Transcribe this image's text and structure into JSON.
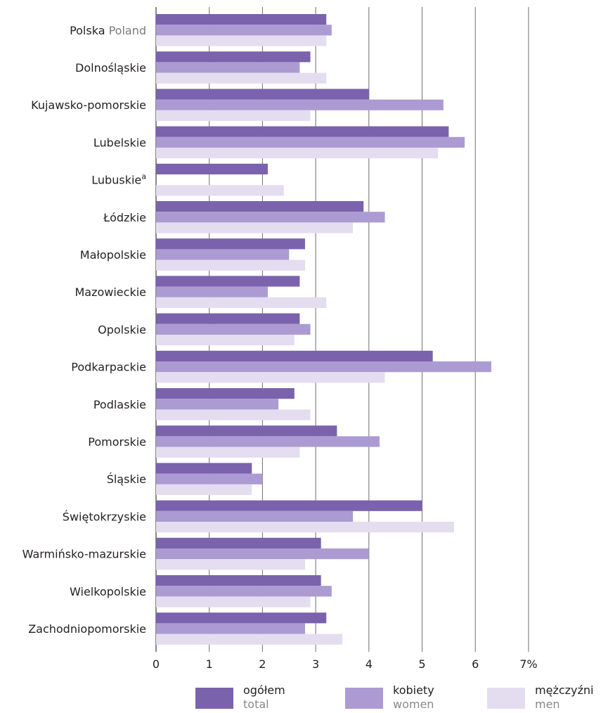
{
  "chart_data": {
    "type": "bar",
    "orientation": "horizontal",
    "categories": [
      "Polska",
      "Dolnośląskie",
      "Kujawsko-pomorskie",
      "Lubelskie",
      "Lubuskie",
      "Łódzkie",
      "Małopolskie",
      "Mazowieckie",
      "Opolskie",
      "Podkarpackie",
      "Podlaskie",
      "Pomorskie",
      "Śląskie",
      "Świętokrzyskie",
      "Warmińsko-mazurskie",
      "Wielkopolskie",
      "Zachodniopomorskie"
    ],
    "category_sublabels": [
      "Poland",
      "",
      "",
      "",
      "",
      "",
      "",
      "",
      "",
      "",
      "",
      "",
      "",
      "",
      "",
      "",
      ""
    ],
    "category_superscripts": [
      "",
      "",
      "",
      "",
      "a",
      "",
      "",
      "",
      "",
      "",
      "",
      "",
      "",
      "",
      "",
      "",
      ""
    ],
    "series": [
      {
        "name": "ogółem",
        "name_en": "total",
        "color": "#7b62ad",
        "values": [
          3.2,
          2.9,
          4.0,
          5.5,
          2.1,
          3.9,
          2.8,
          2.7,
          2.7,
          5.2,
          2.6,
          3.4,
          1.8,
          5.0,
          3.1,
          3.1,
          3.2
        ]
      },
      {
        "name": "kobiety",
        "name_en": "women",
        "color": "#ab9bd2",
        "values": [
          3.3,
          2.7,
          5.4,
          5.8,
          null,
          4.3,
          2.5,
          2.1,
          2.9,
          6.3,
          2.3,
          4.2,
          2.0,
          3.7,
          4.0,
          3.3,
          2.8
        ]
      },
      {
        "name": "mężczyźni",
        "name_en": "men",
        "color": "#e4ddf0",
        "values": [
          3.2,
          3.2,
          2.9,
          5.3,
          2.4,
          3.7,
          2.8,
          3.2,
          2.6,
          4.3,
          2.9,
          2.7,
          1.8,
          5.6,
          2.8,
          2.9,
          3.5
        ]
      }
    ],
    "xlim": [
      0,
      7
    ],
    "x_ticks": [
      "0",
      "1",
      "2",
      "3",
      "4",
      "5",
      "6",
      "7%"
    ],
    "grid": true,
    "legend_position": "bottom"
  }
}
